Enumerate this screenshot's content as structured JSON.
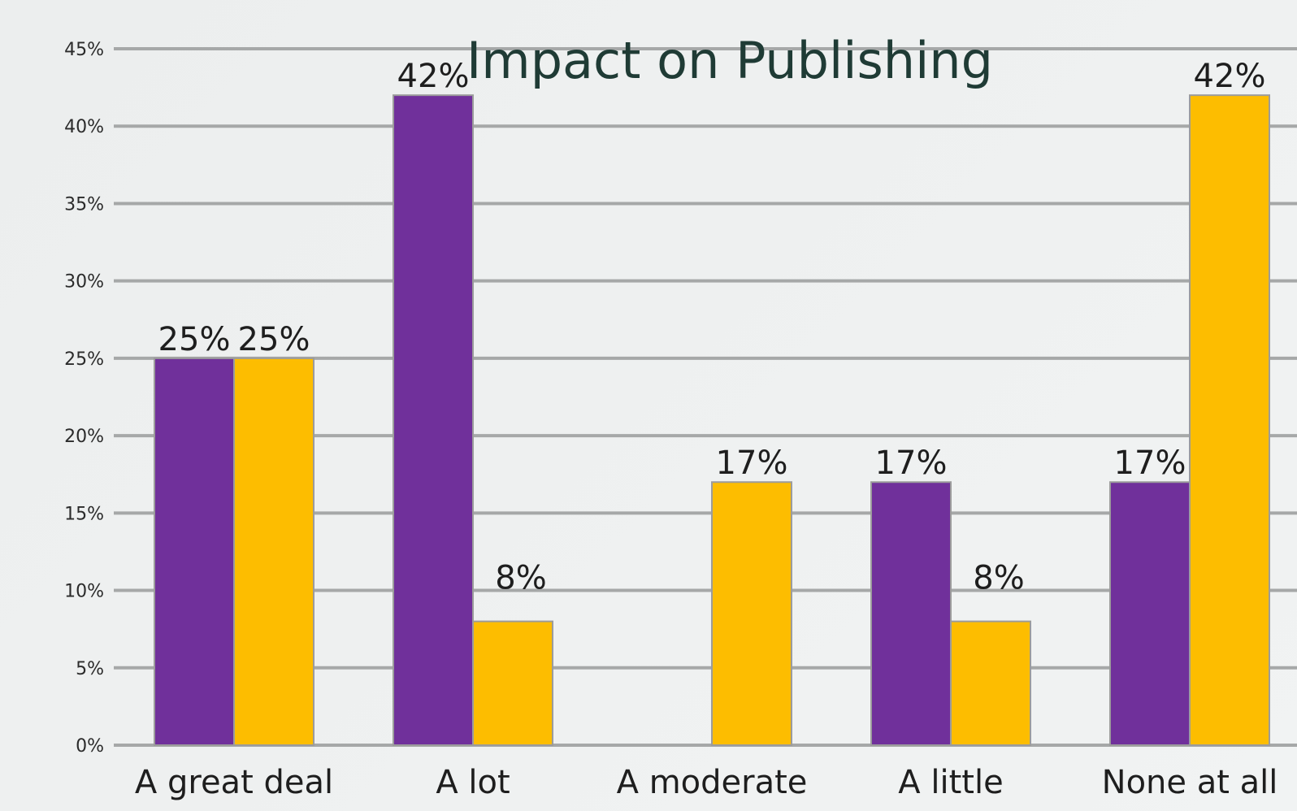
{
  "chart_data": {
    "type": "bar",
    "title": "Impact on Publishing",
    "xlabel": "",
    "ylabel": "",
    "ylim": [
      0,
      45
    ],
    "yticks": [
      "0%",
      "5%",
      "10%",
      "15%",
      "20%",
      "25%",
      "30%",
      "35%",
      "40%",
      "45%"
    ],
    "grid": true,
    "categories": [
      "A great deal",
      "A lot",
      "A moderate",
      "A little",
      "None at all"
    ],
    "series": [
      {
        "color": "#70309b",
        "values": [
          25,
          42,
          null,
          17,
          17
        ],
        "labels": [
          "25%",
          "42%",
          "",
          "17%",
          "17%"
        ]
      },
      {
        "color": "#fdbd00",
        "values": [
          25,
          8,
          17,
          8,
          42
        ],
        "labels": [
          "25%",
          "8%",
          "17%",
          "8%",
          "42%"
        ]
      }
    ]
  }
}
